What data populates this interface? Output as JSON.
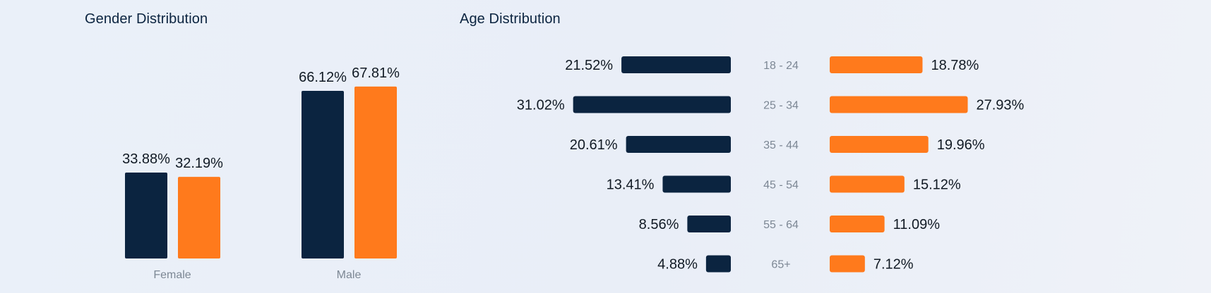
{
  "colors": {
    "series_a": "#0b2440",
    "series_b": "#ff7a1c",
    "value_text": "#111a24",
    "category_text": "#7c8794"
  },
  "chart_data": [
    {
      "type": "bar",
      "title": "Gender Distribution",
      "categories": [
        "Female",
        "Male"
      ],
      "series": [
        {
          "values": [
            33.88,
            66.12
          ],
          "color": "#0b2440"
        },
        {
          "values": [
            32.19,
            67.81
          ],
          "color": "#ff7a1c"
        }
      ],
      "value_labels": [
        [
          "33.88%",
          "66.12%"
        ],
        [
          "32.19%",
          "67.81%"
        ]
      ],
      "ylim": [
        0,
        100
      ],
      "grid": false,
      "legend": "none"
    },
    {
      "type": "bar",
      "orientation": "horizontal-diverging",
      "title": "Age Distribution",
      "categories": [
        "18 - 24",
        "25 - 34",
        "35 - 44",
        "45 - 54",
        "55 - 64",
        "65+"
      ],
      "series": [
        {
          "values": [
            21.52,
            31.02,
            20.61,
            13.41,
            8.56,
            4.88
          ],
          "color": "#0b2440",
          "side": "left"
        },
        {
          "values": [
            18.78,
            27.93,
            19.96,
            15.12,
            11.09,
            7.12
          ],
          "color": "#ff7a1c",
          "side": "right"
        }
      ],
      "value_labels": [
        [
          "21.52%",
          "31.02%",
          "20.61%",
          "13.41%",
          "8.56%",
          "4.88%"
        ],
        [
          "18.78%",
          "27.93%",
          "19.96%",
          "15.12%",
          "11.09%",
          "7.12%"
        ]
      ],
      "grid": false,
      "legend": "none"
    }
  ]
}
